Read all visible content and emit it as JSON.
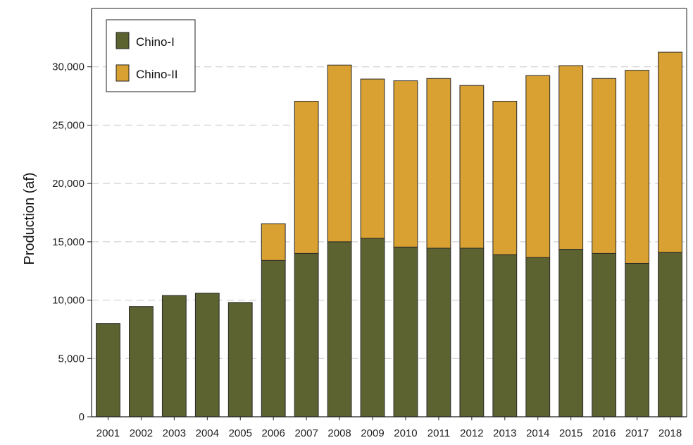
{
  "chart_data": {
    "type": "bar",
    "stacked": true,
    "categories": [
      "2001",
      "2002",
      "2003",
      "2004",
      "2005",
      "2006",
      "2007",
      "2008",
      "2009",
      "2010",
      "2011",
      "2012",
      "2013",
      "2014",
      "2015",
      "2016",
      "2017",
      "2018"
    ],
    "series": [
      {
        "name": "Chino-I",
        "color": "#5c6330",
        "values": [
          8000,
          9450,
          10400,
          10600,
          9800,
          13400,
          14000,
          15000,
          15300,
          14550,
          14450,
          14450,
          13900,
          13650,
          14350,
          14000,
          13150,
          14100
        ]
      },
      {
        "name": "Chino-II",
        "color": "#d9a032",
        "values": [
          0,
          0,
          0,
          0,
          0,
          3150,
          13050,
          15150,
          13650,
          14250,
          14550,
          13950,
          13150,
          15600,
          15750,
          15000,
          16550,
          17150
        ]
      }
    ],
    "title": "",
    "xlabel": "",
    "ylabel": "Production (af)",
    "ylim": [
      0,
      35000
    ],
    "yticks": [
      0,
      5000,
      10000,
      15000,
      20000,
      25000,
      30000
    ],
    "ytick_labels": [
      "0",
      "5,000",
      "10,000",
      "15,000",
      "20,000",
      "25,000",
      "30,000"
    ],
    "grid": "horizontal-dashed",
    "legend_position": "top-left"
  }
}
